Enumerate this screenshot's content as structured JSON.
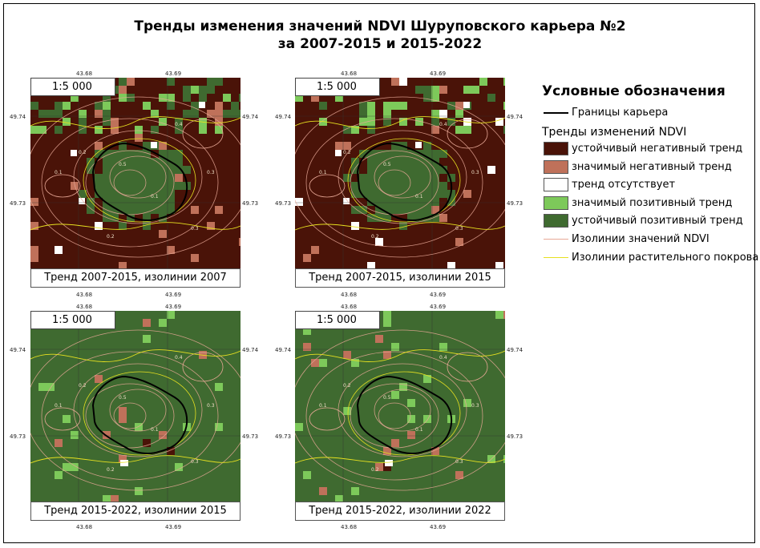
{
  "title": {
    "line1": "Тренды изменения значений NDVI Шуруповского карьера №2",
    "line2": "за 2007-2015 и 2015-2022"
  },
  "scale_label": "1:5 000",
  "ticks": {
    "lon_left": "43.68",
    "lon_right": "43.69",
    "lat_top": "49.74",
    "lat_bottom": "49.73"
  },
  "panels": [
    {
      "caption": "Тренд 2007-2015, изолинии 2007",
      "base": "negative_dominant"
    },
    {
      "caption": "Тренд 2007-2015, изолинии 2015",
      "base": "negative_dominant"
    },
    {
      "caption": "Тренд 2015-2022, изолинии 2015",
      "base": "positive_dominant"
    },
    {
      "caption": "Тренд 2015-2022, изолинии 2022",
      "base": "positive_dominant"
    }
  ],
  "isoline_labels": [
    "0.1",
    "0.2",
    "0.3",
    "0.4",
    "0.5"
  ],
  "legend": {
    "title": "Условные обозначения",
    "boundary_label": "Границы карьера",
    "trends_heading": "Тренды изменений NDVI",
    "items": [
      {
        "label": "устойчивый негативный тренд",
        "color": "#4a1308"
      },
      {
        "label": "значимый негативный тренд",
        "color": "#bf715a"
      },
      {
        "label": "тренд отсутствует",
        "color": "#ffffff"
      },
      {
        "label": "значимый позитивный тренд",
        "color": "#7dc95a"
      },
      {
        "label": "устойчивый позитивный тренд",
        "color": "#3f6a30"
      }
    ],
    "ndvi_isolines_label": "Изолинии значений NDVI",
    "ndvi_isolines_color": "#e8a896",
    "veg_isolines_label": "Изолинии растительного покрова",
    "veg_isolines_color": "#e6e020"
  }
}
